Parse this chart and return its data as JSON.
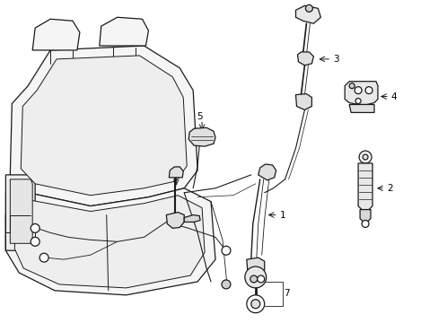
{
  "background_color": "#ffffff",
  "line_color": "#1a1a1a",
  "figsize": [
    4.89,
    3.6
  ],
  "dpi": 100,
  "seat_fill": "#f5f5f5",
  "seat_fill2": "#eeeeee"
}
